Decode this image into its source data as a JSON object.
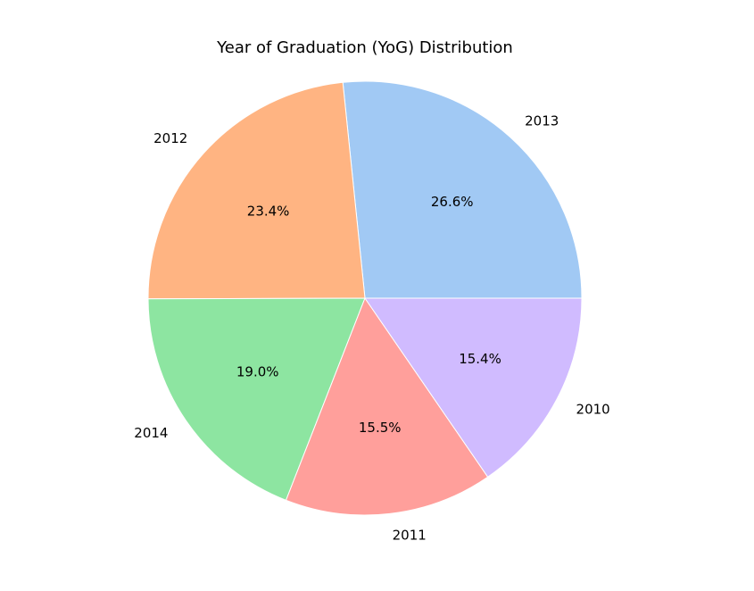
{
  "chart_data": {
    "type": "pie",
    "title": "Year of Graduation (YoG) Distribution",
    "categories": [
      "2013",
      "2012",
      "2014",
      "2011",
      "2010"
    ],
    "values": [
      26.6,
      23.4,
      19.0,
      15.5,
      15.4
    ],
    "value_labels": [
      "26.6%",
      "23.4%",
      "19.0%",
      "15.5%",
      "15.4%"
    ],
    "colors": [
      "#a1c9f4",
      "#ffb482",
      "#8de5a1",
      "#ff9f9b",
      "#d0bbff"
    ],
    "start_angle": 0,
    "direction": "counterclockwise",
    "legend": "none"
  }
}
